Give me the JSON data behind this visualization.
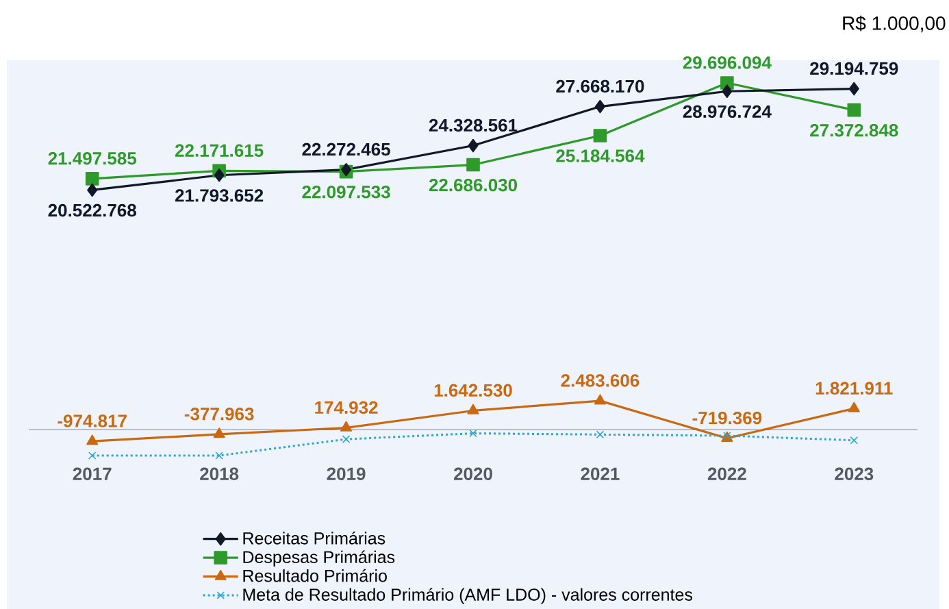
{
  "chart_data": {
    "type": "line",
    "title": "R$ 1.000,00",
    "categories": [
      "2017",
      "2018",
      "2019",
      "2020",
      "2021",
      "2022",
      "2023"
    ],
    "series": [
      {
        "name": "Receitas Primárias",
        "color": "#111827",
        "marker": "diamond",
        "line_style": "solid",
        "values": [
          20522768,
          21793652,
          22272465,
          24328561,
          27668170,
          28976724,
          29194759
        ],
        "value_labels": [
          "20.522.768",
          "21.793.652",
          "22.272.465",
          "24.328.561",
          "27.668.170",
          "28.976.724",
          "29.194.759"
        ]
      },
      {
        "name": "Despesas Primárias",
        "color": "#2e9a2a",
        "marker": "square",
        "line_style": "solid",
        "values": [
          21497585,
          22171615,
          22097533,
          22686030,
          25184564,
          29696094,
          27372848
        ],
        "value_labels": [
          "21.497.585",
          "22.171.615",
          "22.097.533",
          "22.686.030",
          "25.184.564",
          "29.696.094",
          "27.372.848"
        ]
      },
      {
        "name": "Resultado Primário",
        "color": "#c96a12",
        "marker": "triangle",
        "line_style": "solid",
        "values": [
          -974817,
          -377963,
          174932,
          1642530,
          2483606,
          -719369,
          1821911
        ],
        "value_labels": [
          "-974.817",
          "-377.963",
          "174.932",
          "1.642.530",
          "2.483.606",
          "-719.369",
          "1.821.911"
        ]
      },
      {
        "name": "Meta de Resultado Primário (AMF LDO) - valores correntes",
        "color": "#2ba6d0",
        "marker": "cross",
        "line_style": "dotted",
        "values": [
          -2200000,
          -2200000,
          -800000,
          -300000,
          -400000,
          -500000,
          -900000
        ]
      }
    ],
    "tick_labels": "x",
    "grid": false,
    "legend": "bottom"
  }
}
